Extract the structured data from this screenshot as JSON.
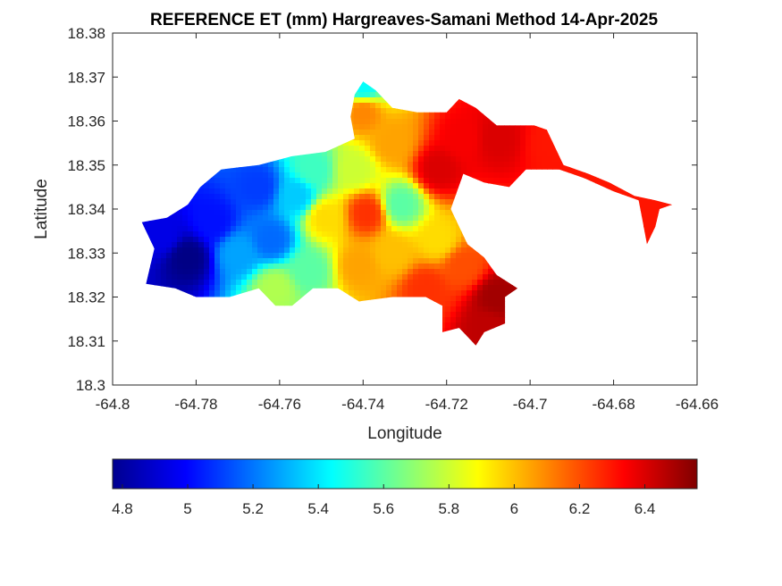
{
  "chart_data": {
    "type": "heatmap",
    "title": "REFERENCE ET (mm) Hargreaves-Samani Method  14-Apr-2025",
    "xlabel": "Longitude",
    "ylabel": "Latitude",
    "xlim": [
      -64.8,
      -64.66
    ],
    "ylim": [
      18.3,
      18.38
    ],
    "x_ticks": [
      -64.8,
      -64.78,
      -64.76,
      -64.74,
      -64.72,
      -64.7,
      -64.68,
      -64.66
    ],
    "x_tick_labels": [
      "-64.8",
      "-64.78",
      "-64.76",
      "-64.74",
      "-64.72",
      "-64.7",
      "-64.68",
      "-64.66"
    ],
    "y_ticks": [
      18.3,
      18.31,
      18.32,
      18.33,
      18.34,
      18.35,
      18.36,
      18.37,
      18.38
    ],
    "y_tick_labels": [
      "18.3",
      "18.31",
      "18.32",
      "18.33",
      "18.34",
      "18.35",
      "18.36",
      "18.37",
      "18.38"
    ],
    "grid": false,
    "colormap": "jet",
    "colorbar": {
      "placement": "bottom",
      "range": [
        4.77,
        6.56
      ],
      "ticks": [
        4.8,
        5,
        5.2,
        5.4,
        5.6,
        5.8,
        6,
        6.2,
        6.4
      ],
      "tick_labels": [
        "4.8",
        "5",
        "5.2",
        "5.4",
        "5.6",
        "5.8",
        "6",
        "6.2",
        "6.4"
      ]
    },
    "field": {
      "description_units": "mm",
      "region_outline_lonlat": [
        [
          -64.792,
          18.323
        ],
        [
          -64.79,
          18.331
        ],
        [
          -64.793,
          18.337
        ],
        [
          -64.787,
          18.338
        ],
        [
          -64.782,
          18.341
        ],
        [
          -64.779,
          18.345
        ],
        [
          -64.774,
          18.349
        ],
        [
          -64.765,
          18.35
        ],
        [
          -64.757,
          18.352
        ],
        [
          -64.749,
          18.353
        ],
        [
          -64.742,
          18.356
        ],
        [
          -64.743,
          18.361
        ],
        [
          -64.742,
          18.366
        ],
        [
          -64.74,
          18.369
        ],
        [
          -64.737,
          18.367
        ],
        [
          -64.733,
          18.363
        ],
        [
          -64.727,
          18.362
        ],
        [
          -64.72,
          18.362
        ],
        [
          -64.717,
          18.365
        ],
        [
          -64.713,
          18.363
        ],
        [
          -64.708,
          18.359
        ],
        [
          -64.703,
          18.359
        ],
        [
          -64.699,
          18.359
        ],
        [
          -64.696,
          18.358
        ],
        [
          -64.694,
          18.354
        ],
        [
          -64.692,
          18.35
        ],
        [
          -64.686,
          18.348
        ],
        [
          -64.681,
          18.346
        ],
        [
          -64.675,
          18.343
        ],
        [
          -64.67,
          18.342
        ],
        [
          -64.666,
          18.341
        ],
        [
          -64.669,
          18.34
        ],
        [
          -64.67,
          18.336
        ],
        [
          -64.672,
          18.332
        ],
        [
          -64.673,
          18.337
        ],
        [
          -64.674,
          18.342
        ],
        [
          -64.68,
          18.344
        ],
        [
          -64.687,
          18.347
        ],
        [
          -64.693,
          18.349
        ],
        [
          -64.701,
          18.349
        ],
        [
          -64.705,
          18.345
        ],
        [
          -64.711,
          18.346
        ],
        [
          -64.716,
          18.348
        ],
        [
          -64.719,
          18.34
        ],
        [
          -64.715,
          18.332
        ],
        [
          -64.711,
          18.329
        ],
        [
          -64.708,
          18.325
        ],
        [
          -64.703,
          18.322
        ],
        [
          -64.706,
          18.32
        ],
        [
          -64.706,
          18.314
        ],
        [
          -64.711,
          18.312
        ],
        [
          -64.713,
          18.309
        ],
        [
          -64.717,
          18.313
        ],
        [
          -64.721,
          18.312
        ],
        [
          -64.721,
          18.318
        ],
        [
          -64.725,
          18.32
        ],
        [
          -64.733,
          18.32
        ],
        [
          -64.741,
          18.319
        ],
        [
          -64.746,
          18.322
        ],
        [
          -64.752,
          18.322
        ],
        [
          -64.757,
          18.318
        ],
        [
          -64.761,
          18.318
        ],
        [
          -64.765,
          18.322
        ],
        [
          -64.772,
          18.32
        ],
        [
          -64.78,
          18.32
        ],
        [
          -64.785,
          18.322
        ]
      ],
      "control_points": [
        {
          "lon": -64.782,
          "lat": 18.329,
          "et": 4.78
        },
        {
          "lon": -64.788,
          "lat": 18.334,
          "et": 4.95
        },
        {
          "lon": -64.776,
          "lat": 18.337,
          "et": 5.02
        },
        {
          "lon": -64.765,
          "lat": 18.345,
          "et": 5.1
        },
        {
          "lon": -64.77,
          "lat": 18.33,
          "et": 5.28
        },
        {
          "lon": -64.762,
          "lat": 18.333,
          "et": 5.18
        },
        {
          "lon": -64.756,
          "lat": 18.343,
          "et": 5.35
        },
        {
          "lon": -64.752,
          "lat": 18.349,
          "et": 5.55
        },
        {
          "lon": -64.749,
          "lat": 18.338,
          "et": 5.95
        },
        {
          "lon": -64.753,
          "lat": 18.326,
          "et": 5.6
        },
        {
          "lon": -64.761,
          "lat": 18.322,
          "et": 5.75
        },
        {
          "lon": -64.74,
          "lat": 18.362,
          "et": 6.1
        },
        {
          "lon": -64.733,
          "lat": 18.355,
          "et": 6.05
        },
        {
          "lon": -64.742,
          "lat": 18.349,
          "et": 5.8
        },
        {
          "lon": -64.739,
          "lat": 18.339,
          "et": 6.25
        },
        {
          "lon": -64.731,
          "lat": 18.341,
          "et": 5.6
        },
        {
          "lon": -64.733,
          "lat": 18.33,
          "et": 6.0
        },
        {
          "lon": -64.741,
          "lat": 18.327,
          "et": 6.05
        },
        {
          "lon": -64.722,
          "lat": 18.349,
          "et": 6.4
        },
        {
          "lon": -64.716,
          "lat": 18.356,
          "et": 6.35
        },
        {
          "lon": -64.708,
          "lat": 18.356,
          "et": 6.4
        },
        {
          "lon": -64.722,
          "lat": 18.333,
          "et": 5.95
        },
        {
          "lon": -64.716,
          "lat": 18.327,
          "et": 6.2
        },
        {
          "lon": -64.708,
          "lat": 18.32,
          "et": 6.5
        },
        {
          "lon": -64.71,
          "lat": 18.313,
          "et": 6.45
        },
        {
          "lon": -64.725,
          "lat": 18.322,
          "et": 6.25
        },
        {
          "lon": -64.695,
          "lat": 18.355,
          "et": 6.3
        },
        {
          "lon": -64.68,
          "lat": 18.345,
          "et": 6.3
        },
        {
          "lon": -64.67,
          "lat": 18.34,
          "et": 6.3
        },
        {
          "lon": -64.74,
          "lat": 18.368,
          "et": 5.45
        }
      ]
    }
  }
}
